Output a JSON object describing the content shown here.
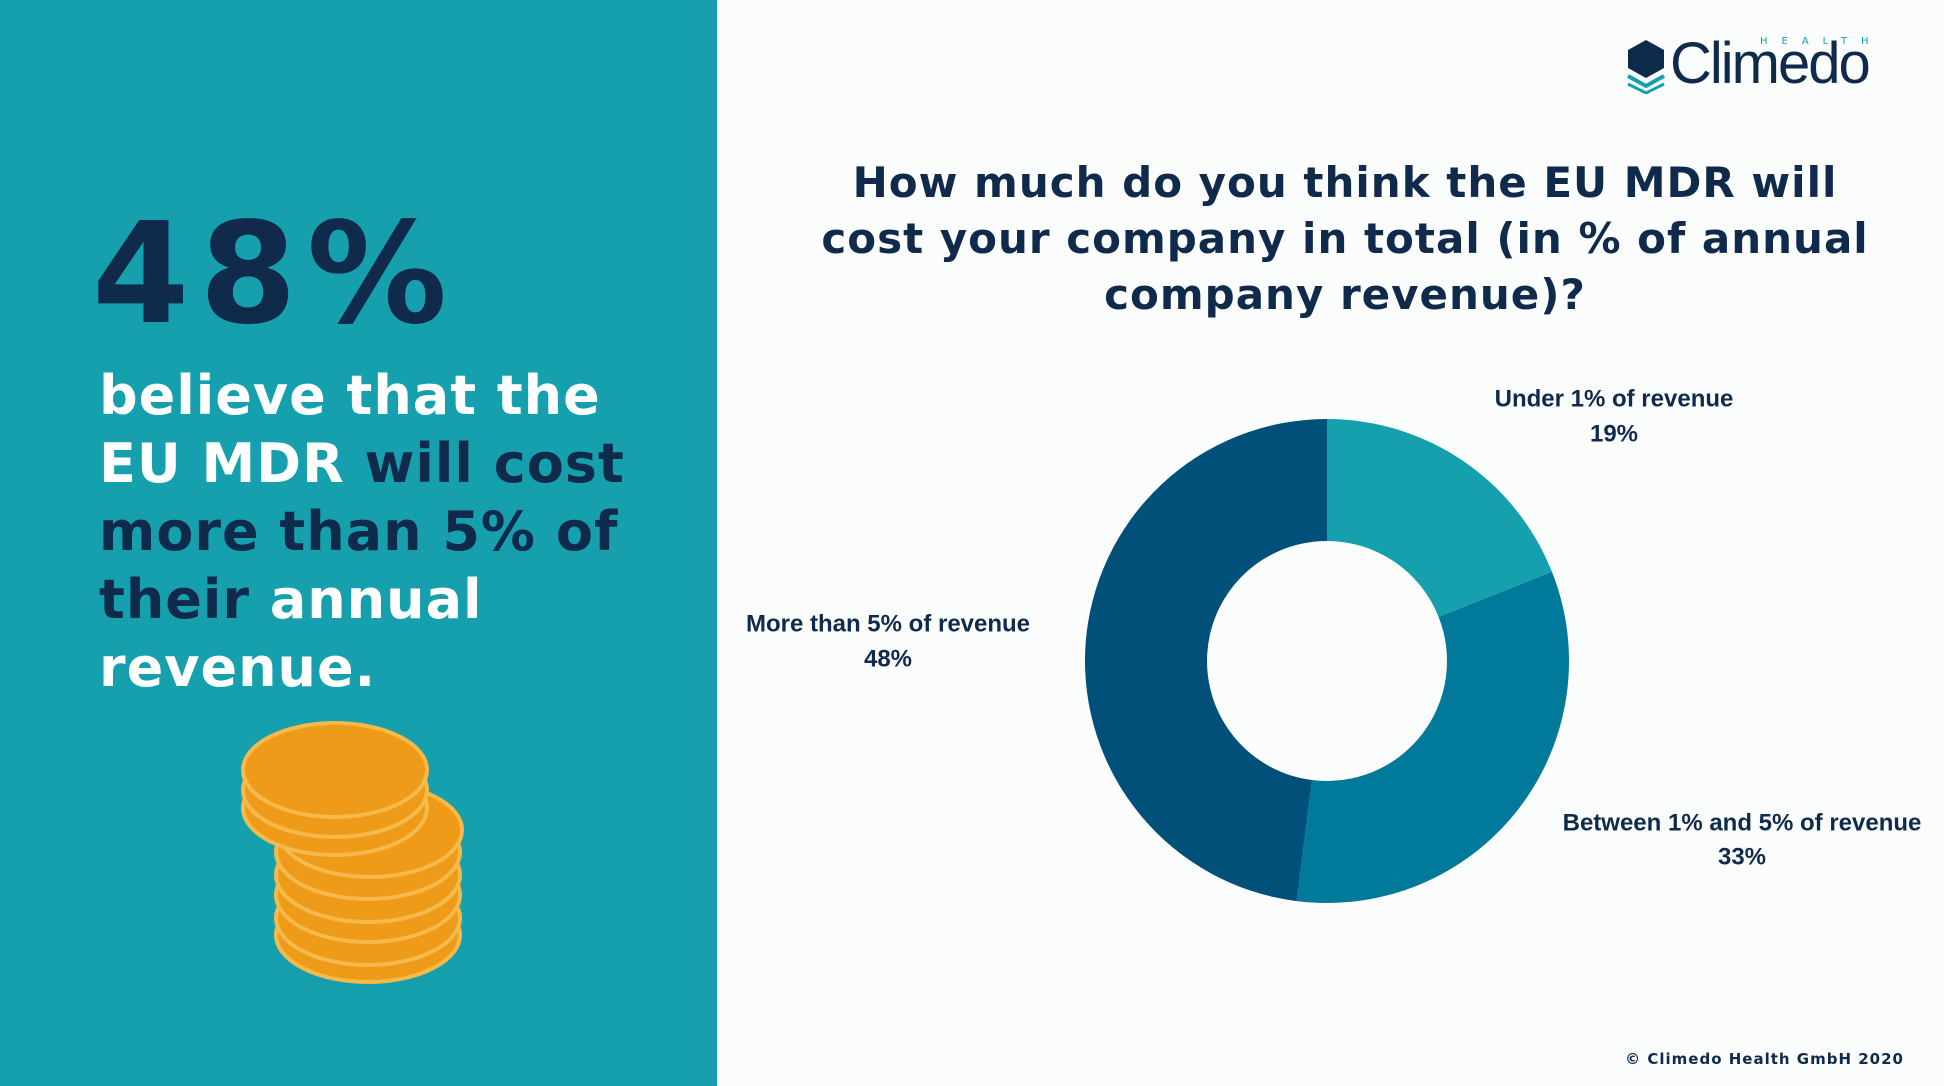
{
  "sidebar": {
    "headline": "48%",
    "statement": [
      {
        "text": "believe that the EU MDR ",
        "color": "#ffffff"
      },
      {
        "text": "will cost more than 5% of their",
        "color": "#0f2a4a"
      },
      {
        "text": " annual revenue.",
        "color": "#ffffff"
      }
    ]
  },
  "logo": {
    "name": "Climedo",
    "tagline": "HEALTH"
  },
  "footer": "© Climedo Health GmbH 2020",
  "chart_data": {
    "type": "donut",
    "title": "How much do you think the EU MDR will cost your company in total (in % of annual company revenue)?",
    "categories": [
      "Under 1% of revenue",
      "Between 1% and 5% of revenue",
      "More than 5% of revenue"
    ],
    "values": [
      19,
      33,
      48
    ],
    "value_labels": [
      "19%",
      "33%",
      "48%"
    ],
    "colors": [
      "#16a0ad",
      "#00799a",
      "#005079"
    ]
  }
}
